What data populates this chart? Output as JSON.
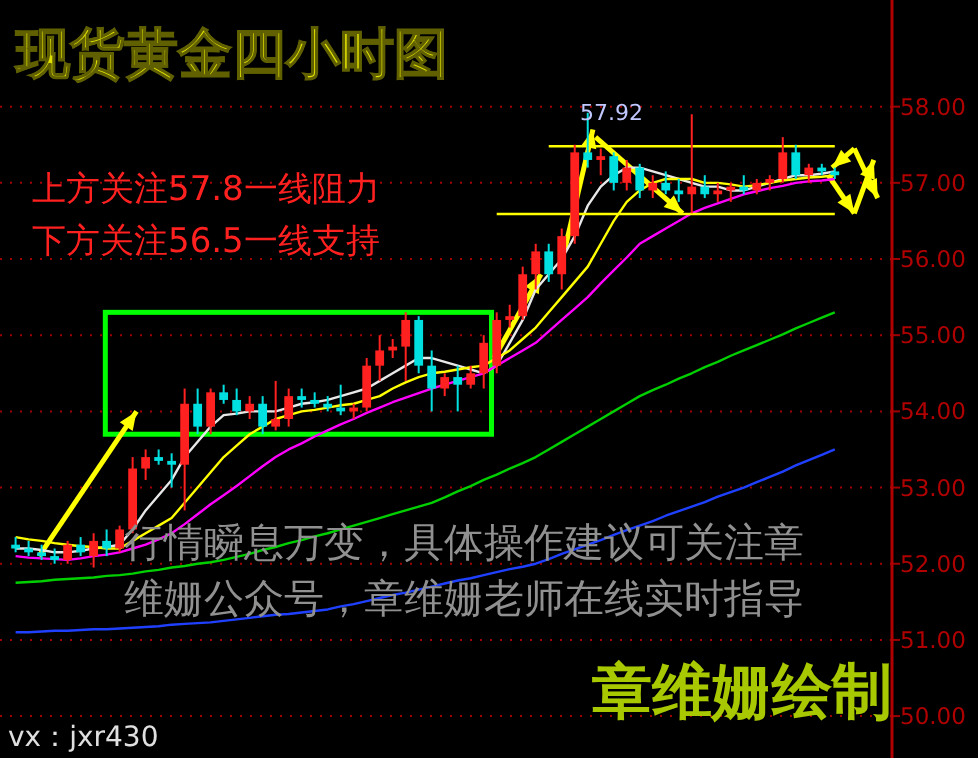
{
  "chart_data": {
    "type": "candlestick",
    "title": "现货黄金四小时图",
    "categories": [
      null,
      null,
      null,
      null,
      null,
      null,
      null,
      null,
      null,
      null,
      null,
      null,
      null,
      null,
      null,
      null,
      null,
      null,
      null,
      null,
      null,
      null,
      null,
      null,
      null,
      null,
      null,
      null,
      null,
      null,
      null,
      null,
      null,
      null,
      null,
      null,
      null,
      null,
      null,
      null,
      null,
      null,
      null,
      null,
      null,
      null,
      null,
      null,
      null,
      null,
      null,
      null,
      null,
      null,
      null,
      null,
      null,
      null,
      null,
      null,
      null,
      null,
      null,
      null
    ],
    "ohlc": [
      [
        52.25,
        52.35,
        52.15,
        52.2
      ],
      [
        52.2,
        52.3,
        52.1,
        52.15
      ],
      [
        52.15,
        52.25,
        52.05,
        52.1
      ],
      [
        52.1,
        52.2,
        52.0,
        52.05
      ],
      [
        52.05,
        52.3,
        52.0,
        52.25
      ],
      [
        52.25,
        52.35,
        52.1,
        52.15
      ],
      [
        52.1,
        52.4,
        51.95,
        52.3
      ],
      [
        52.3,
        52.45,
        52.1,
        52.2
      ],
      [
        52.2,
        52.5,
        52.15,
        52.45
      ],
      [
        52.45,
        53.4,
        52.4,
        53.25
      ],
      [
        53.25,
        53.5,
        53.1,
        53.4
      ],
      [
        53.4,
        53.5,
        53.3,
        53.35
      ],
      [
        53.35,
        53.45,
        53.0,
        53.3
      ],
      [
        53.3,
        54.3,
        52.7,
        54.1
      ],
      [
        54.1,
        54.3,
        53.7,
        53.8
      ],
      [
        53.8,
        54.3,
        53.7,
        54.25
      ],
      [
        54.25,
        54.35,
        54.1,
        54.15
      ],
      [
        54.15,
        54.3,
        53.95,
        54.0
      ],
      [
        54.0,
        54.2,
        53.9,
        54.1
      ],
      [
        54.1,
        54.2,
        53.7,
        53.8
      ],
      [
        53.8,
        54.4,
        53.75,
        53.9
      ],
      [
        53.9,
        54.3,
        53.8,
        54.2
      ],
      [
        54.2,
        54.3,
        54.05,
        54.15
      ],
      [
        54.15,
        54.25,
        54.05,
        54.1
      ],
      [
        54.1,
        54.2,
        54.0,
        54.05
      ],
      [
        54.05,
        54.35,
        53.95,
        54.0
      ],
      [
        54.0,
        54.1,
        53.9,
        54.05
      ],
      [
        54.05,
        54.7,
        54.0,
        54.6
      ],
      [
        54.6,
        55.0,
        54.4,
        54.8
      ],
      [
        54.8,
        54.95,
        54.7,
        54.85
      ],
      [
        54.85,
        55.3,
        54.4,
        55.2
      ],
      [
        55.2,
        55.25,
        54.5,
        54.6
      ],
      [
        54.6,
        54.8,
        54.0,
        54.3
      ],
      [
        54.3,
        54.5,
        54.2,
        54.45
      ],
      [
        54.45,
        54.6,
        54.0,
        54.35
      ],
      [
        54.35,
        54.6,
        54.3,
        54.5
      ],
      [
        54.5,
        55.0,
        54.3,
        54.9
      ],
      [
        54.6,
        55.3,
        54.5,
        55.2
      ],
      [
        55.2,
        55.4,
        55.1,
        55.25
      ],
      [
        55.25,
        55.9,
        55.2,
        55.8
      ],
      [
        55.8,
        56.2,
        55.6,
        56.1
      ],
      [
        56.1,
        56.2,
        55.7,
        55.8
      ],
      [
        55.8,
        56.4,
        55.6,
        56.3
      ],
      [
        56.3,
        57.5,
        56.2,
        57.4
      ],
      [
        57.4,
        57.92,
        57.2,
        57.3
      ],
      [
        57.3,
        57.45,
        57.1,
        57.35
      ],
      [
        57.35,
        57.4,
        56.9,
        57.0
      ],
      [
        57.0,
        57.3,
        56.9,
        57.2
      ],
      [
        57.2,
        57.25,
        56.8,
        56.9
      ],
      [
        56.9,
        57.1,
        56.8,
        57.0
      ],
      [
        57.0,
        57.15,
        56.85,
        56.9
      ],
      [
        56.9,
        57.05,
        56.75,
        56.85
      ],
      [
        56.85,
        57.9,
        56.6,
        56.95
      ],
      [
        56.95,
        57.1,
        56.8,
        56.85
      ],
      [
        56.85,
        57.0,
        56.75,
        56.9
      ],
      [
        56.9,
        57.0,
        56.75,
        56.95
      ],
      [
        56.95,
        57.1,
        56.85,
        56.9
      ],
      [
        56.9,
        57.05,
        56.85,
        57.0
      ],
      [
        57.0,
        57.1,
        56.9,
        57.05
      ],
      [
        57.05,
        57.6,
        57.0,
        57.4
      ],
      [
        57.4,
        57.5,
        57.05,
        57.1
      ],
      [
        57.1,
        57.25,
        57.0,
        57.2
      ],
      [
        57.2,
        57.25,
        57.1,
        57.15
      ],
      [
        57.15,
        57.2,
        57.05,
        57.1
      ]
    ],
    "colors": [
      "#00e0e0",
      "#00e0e0",
      "#00e0e0",
      "#00e0e0",
      "#ff2020",
      "#00e0e0",
      "#ff2020",
      "#00e0e0",
      "#ff2020",
      "#ff2020",
      "#ff2020",
      "#00e0e0",
      "#00e0e0",
      "#ff2020",
      "#00e0e0",
      "#ff2020",
      "#00e0e0",
      "#00e0e0",
      "#ff2020",
      "#00e0e0",
      "#ff2020",
      "#ff2020",
      "#00e0e0",
      "#00e0e0",
      "#00e0e0",
      "#00e0e0",
      "#ff2020",
      "#ff2020",
      "#ff2020",
      "#ff2020",
      "#ff2020",
      "#00e0e0",
      "#00e0e0",
      "#ff2020",
      "#00e0e0",
      "#ff2020",
      "#ff2020",
      "#ff2020",
      "#ff2020",
      "#ff2020",
      "#ff2020",
      "#00e0e0",
      "#ff2020",
      "#ff2020",
      "#00e0e0",
      "#ff2020",
      "#00e0e0",
      "#ff2020",
      "#00e0e0",
      "#ff2020",
      "#00e0e0",
      "#00e0e0",
      "#ff2020",
      "#00e0e0",
      "#ff2020",
      "#ff2020",
      "#00e0e0",
      "#ff2020",
      "#ff2020",
      "#ff2020",
      "#00e0e0",
      "#ff2020",
      "#00e0e0",
      "#00e0e0"
    ],
    "series": [
      {
        "type": "line",
        "color": "#e8e8e8",
        "values": [
          52.2,
          52.2,
          52.18,
          52.15,
          52.15,
          52.17,
          52.2,
          52.22,
          52.25,
          52.45,
          52.7,
          52.9,
          53.1,
          53.4,
          53.6,
          53.8,
          53.95,
          53.97,
          54.0,
          54.0,
          54.0,
          54.05,
          54.1,
          54.12,
          54.15,
          54.2,
          54.25,
          54.3,
          54.4,
          54.5,
          54.6,
          54.7,
          54.7,
          54.65,
          54.6,
          54.55,
          54.5,
          54.6,
          54.9,
          55.2,
          55.6,
          55.8,
          56.0,
          56.3,
          56.7,
          56.95,
          57.1,
          57.2,
          57.2,
          57.15,
          57.1,
          57.05,
          57.0,
          56.95,
          56.95,
          56.9,
          56.9,
          56.95,
          57.0,
          57.05,
          57.1,
          57.1,
          57.12,
          57.15
        ]
      },
      {
        "type": "line",
        "color": "#ffff00",
        "values": [
          52.35,
          52.32,
          52.3,
          52.27,
          52.25,
          52.23,
          52.22,
          52.2,
          52.2,
          52.3,
          52.4,
          52.5,
          52.6,
          52.8,
          53.0,
          53.2,
          53.4,
          53.55,
          53.7,
          53.8,
          53.9,
          53.95,
          54.0,
          54.02,
          54.05,
          54.08,
          54.1,
          54.15,
          54.2,
          54.3,
          54.38,
          54.45,
          54.5,
          54.52,
          54.55,
          54.58,
          54.6,
          54.7,
          54.8,
          54.95,
          55.1,
          55.3,
          55.5,
          55.7,
          55.9,
          56.2,
          56.5,
          56.75,
          56.9,
          57.0,
          57.05,
          57.05,
          57.05,
          57.0,
          57.0,
          56.98,
          56.95,
          56.97,
          57.0,
          57.03,
          57.05,
          57.07,
          57.08,
          57.1
        ]
      },
      {
        "type": "line",
        "color": "#ff00ff",
        "values": [
          52.1,
          52.08,
          52.07,
          52.06,
          52.05,
          52.07,
          52.1,
          52.12,
          52.15,
          52.2,
          52.25,
          52.32,
          52.4,
          52.52,
          52.65,
          52.78,
          52.9,
          53.02,
          53.15,
          53.28,
          53.4,
          53.5,
          53.58,
          53.67,
          53.75,
          53.83,
          53.9,
          53.98,
          54.05,
          54.12,
          54.18,
          54.24,
          54.3,
          54.35,
          54.4,
          54.45,
          54.5,
          54.6,
          54.7,
          54.8,
          54.9,
          55.05,
          55.2,
          55.35,
          55.5,
          55.68,
          55.85,
          56.02,
          56.2,
          56.3,
          56.4,
          56.5,
          56.6,
          56.67,
          56.73,
          56.79,
          56.85,
          56.89,
          56.93,
          56.96,
          57.0,
          57.02,
          57.03,
          57.05
        ]
      },
      {
        "type": "line",
        "color": "#00d000",
        "values": [
          51.75,
          51.76,
          51.77,
          51.79,
          51.8,
          51.81,
          51.82,
          51.84,
          51.85,
          51.87,
          51.9,
          51.92,
          51.95,
          51.97,
          52.0,
          52.02,
          52.05,
          52.09,
          52.13,
          52.18,
          52.22,
          52.27,
          52.31,
          52.36,
          52.4,
          52.45,
          52.5,
          52.55,
          52.6,
          52.65,
          52.7,
          52.75,
          52.8,
          52.87,
          52.95,
          53.02,
          53.1,
          53.17,
          53.25,
          53.32,
          53.4,
          53.5,
          53.6,
          53.7,
          53.8,
          53.9,
          54.0,
          54.1,
          54.2,
          54.28,
          54.35,
          54.43,
          54.5,
          54.58,
          54.65,
          54.73,
          54.8,
          54.87,
          54.94,
          55.01,
          55.09,
          55.16,
          55.23,
          55.3
        ]
      },
      {
        "type": "line",
        "color": "#2040ff",
        "values": [
          51.1,
          51.1,
          51.11,
          51.12,
          51.12,
          51.13,
          51.14,
          51.14,
          51.15,
          51.16,
          51.17,
          51.18,
          51.2,
          51.21,
          51.22,
          51.23,
          51.25,
          51.27,
          51.29,
          51.31,
          51.33,
          51.34,
          51.36,
          51.38,
          51.4,
          51.44,
          51.47,
          51.51,
          51.55,
          51.59,
          51.62,
          51.66,
          51.7,
          51.74,
          51.78,
          51.81,
          51.85,
          51.89,
          51.93,
          51.96,
          52.0,
          52.06,
          52.13,
          52.19,
          52.25,
          52.31,
          52.38,
          52.44,
          52.5,
          52.56,
          52.63,
          52.69,
          52.75,
          52.81,
          52.88,
          52.94,
          53.0,
          53.07,
          53.14,
          53.21,
          53.29,
          53.36,
          53.43,
          53.5
        ]
      },
      {
        "type": "line",
        "color": "#ffff00",
        "values": [
          null,
          null,
          null,
          null,
          null,
          null,
          null,
          null,
          null,
          null,
          null,
          null,
          null,
          null,
          null,
          null,
          null,
          null,
          null,
          null,
          null,
          null,
          null,
          null,
          null,
          null,
          null,
          null,
          null,
          null,
          null,
          null,
          null,
          null,
          null,
          null,
          null,
          null,
          null,
          null,
          null,
          57.48,
          57.48,
          57.48,
          57.48,
          57.48,
          57.48,
          57.48,
          57.48,
          57.48,
          57.48,
          57.48,
          57.48,
          57.48,
          57.48,
          57.48,
          57.48,
          57.48,
          57.48,
          57.48,
          57.48,
          57.48,
          57.48,
          57.48
        ]
      },
      {
        "type": "line",
        "color": "#ffff00",
        "values": [
          null,
          null,
          null,
          null,
          null,
          null,
          null,
          null,
          null,
          null,
          null,
          null,
          null,
          null,
          null,
          null,
          null,
          null,
          null,
          null,
          null,
          null,
          null,
          null,
          null,
          null,
          null,
          null,
          null,
          null,
          null,
          null,
          null,
          null,
          null,
          null,
          null,
          56.59,
          56.59,
          56.59,
          56.59,
          56.59,
          56.59,
          56.59,
          56.59,
          56.59,
          56.59,
          56.59,
          56.59,
          56.59,
          56.59,
          56.59,
          56.59,
          56.59,
          56.59,
          56.59,
          56.59,
          56.59,
          56.59,
          56.59,
          56.59,
          56.59,
          56.59,
          56.59
        ]
      }
    ],
    "ylim": [
      49.45,
      59.4
    ],
    "yticks": [
      {
        "value": 50,
        "label": "50.00"
      },
      {
        "value": 51,
        "label": "51.00"
      },
      {
        "value": 52,
        "label": "52.00"
      },
      {
        "value": 53,
        "label": "53.00"
      },
      {
        "value": 54,
        "label": "54.00"
      },
      {
        "value": 55,
        "label": "55.00"
      },
      {
        "value": 56,
        "label": "56.00"
      },
      {
        "value": 57,
        "label": "57.00"
      },
      {
        "value": 58,
        "label": "58.00"
      }
    ],
    "tick_labels": "y",
    "grid": "y",
    "annotations": [
      "上方关注57.8一线阻力",
      "下方关注56.5一线支持",
      "57.92",
      "行情瞬息万变，具体操作建议可关注章维姗公众号，章维姗老师在线实时指导",
      "章维姗绘制",
      "vx：jxr430"
    ]
  }
}
